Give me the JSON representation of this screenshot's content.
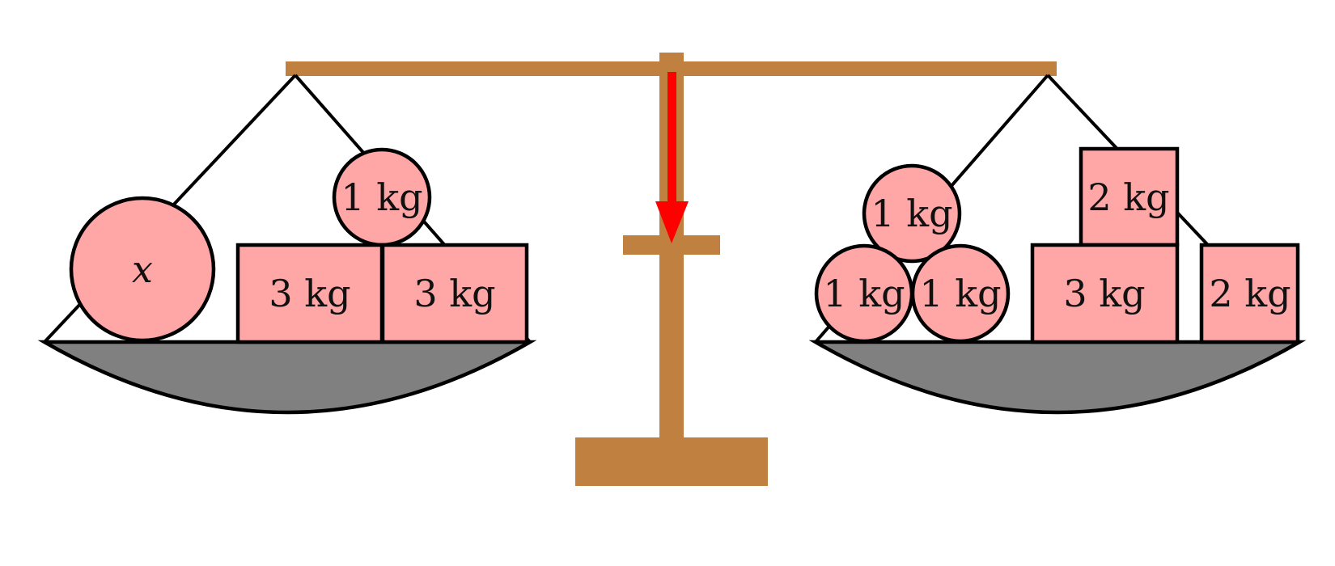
{
  "colors": {
    "wood": "#BF8040",
    "pan": "#808080",
    "weight_fill": "#FFA6A6",
    "arrow": "#FF0000",
    "outline": "#000000"
  },
  "left_pan": {
    "weights": [
      {
        "shape": "circle",
        "label": "x"
      },
      {
        "shape": "circle",
        "label": "1 kg"
      },
      {
        "shape": "square",
        "label": "3 kg"
      },
      {
        "shape": "square",
        "label": "3 kg"
      }
    ]
  },
  "right_pan": {
    "weights": [
      {
        "shape": "circle",
        "label": "1 kg"
      },
      {
        "shape": "circle",
        "label": "1 kg"
      },
      {
        "shape": "circle",
        "label": "1 kg"
      },
      {
        "shape": "square",
        "label": "2 kg"
      },
      {
        "shape": "square",
        "label": "3 kg"
      },
      {
        "shape": "square",
        "label": "2 kg"
      }
    ]
  },
  "indicator": {
    "direction": "down"
  }
}
